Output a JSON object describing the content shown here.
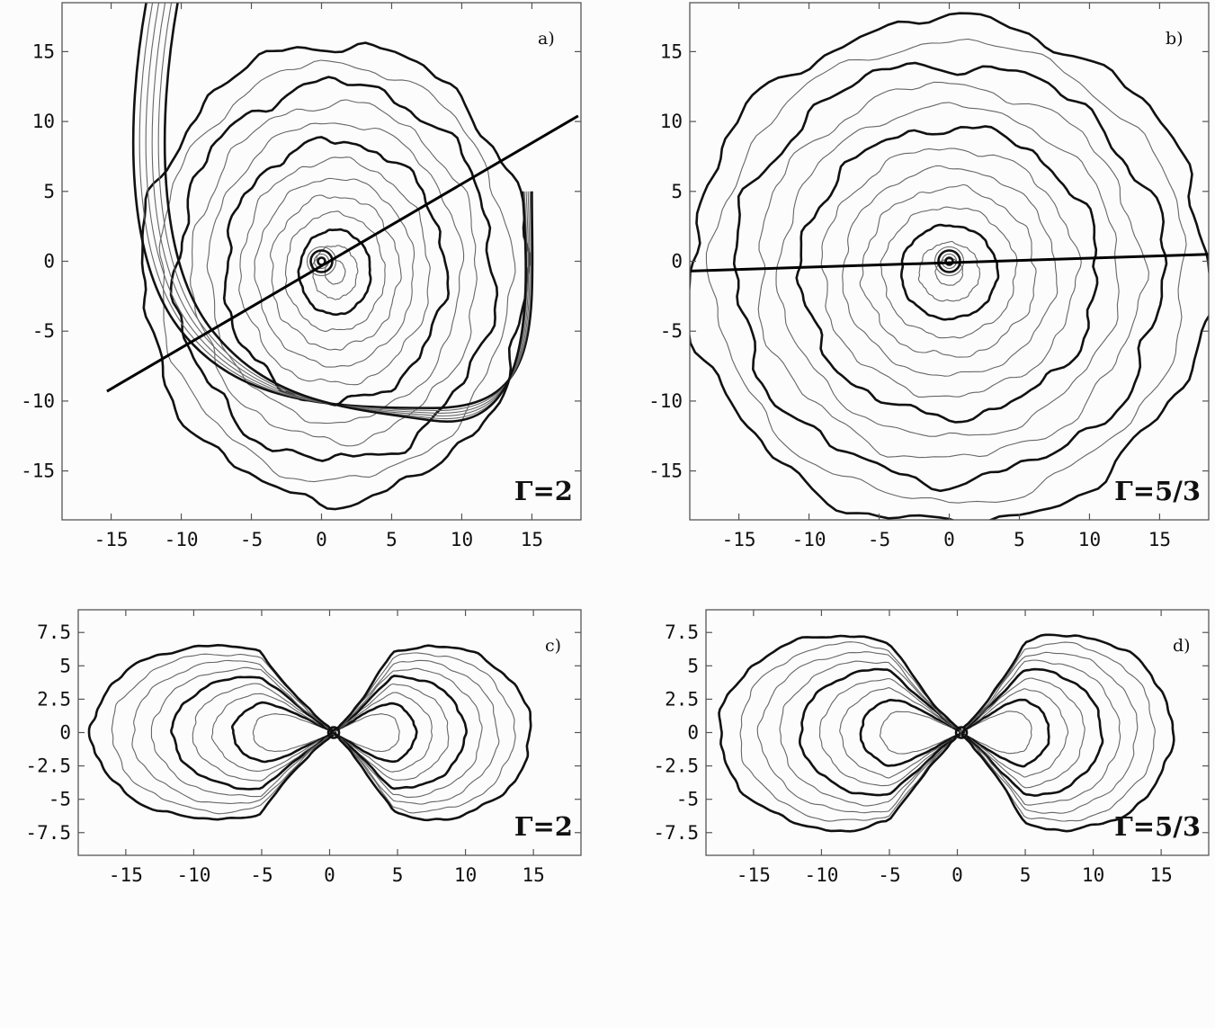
{
  "chart_data": [
    {
      "id": "a",
      "type": "contour",
      "panel_label": "a)",
      "annotation": "Γ=2",
      "xlim": [
        -18.5,
        18.5
      ],
      "ylim": [
        -18.5,
        18.5
      ],
      "xticks": [
        -15,
        -10,
        -5,
        0,
        5,
        10,
        15
      ],
      "yticks": [
        -15,
        -10,
        -5,
        0,
        5,
        10,
        15
      ],
      "xtick_labels": [
        "-15",
        "-10",
        "-5",
        "0",
        "5",
        "10",
        "15"
      ],
      "ytick_labels": [
        "-15",
        "-10",
        "-5",
        "0",
        "5",
        "10",
        "15"
      ],
      "center": [
        0,
        0
      ],
      "outer_extent": {
        "left": -12,
        "right": 18.5,
        "top": 16.5,
        "bottom": -16.2
      },
      "cut_line": {
        "from": [
          -15.3,
          -9.3
        ],
        "to": [
          18.3,
          10.4
        ]
      },
      "spiral_arm": true
    },
    {
      "id": "b",
      "type": "contour",
      "panel_label": "b)",
      "annotation": "Γ=5/3",
      "xlim": [
        -18.5,
        18.5
      ],
      "ylim": [
        -18.5,
        18.5
      ],
      "xticks": [
        -15,
        -10,
        -5,
        0,
        5,
        10,
        15
      ],
      "yticks": [
        -15,
        -10,
        -5,
        0,
        5,
        10,
        15
      ],
      "xtick_labels": [
        "-15",
        "-10",
        "-5",
        "0",
        "5",
        "10",
        "15"
      ],
      "ytick_labels": [
        "-15",
        "-10",
        "-5",
        "0",
        "5",
        "10",
        "15"
      ],
      "center": [
        0,
        0
      ],
      "outer_extent": {
        "left": -18.5,
        "right": 18.5,
        "top": 17.8,
        "bottom": -18.3
      },
      "cut_line": {
        "from": [
          -18.5,
          -0.7
        ],
        "to": [
          18.5,
          0.5
        ]
      },
      "spiral_arm": false
    },
    {
      "id": "c",
      "type": "contour",
      "panel_label": "c)",
      "annotation": "Γ=2",
      "xlim": [
        -18.5,
        18.5
      ],
      "ylim": [
        -9.2,
        9.2
      ],
      "xticks": [
        -15,
        -10,
        -5,
        0,
        5,
        10,
        15
      ],
      "yticks": [
        7.5,
        5,
        2.5,
        0,
        -2.5,
        -5,
        -7.5
      ],
      "xtick_labels": [
        "-15",
        "-10",
        "-5",
        "0",
        "5",
        "10",
        "15"
      ],
      "ytick_labels": [
        "7.5",
        "5",
        "2.5",
        "0",
        "-2.5",
        "-5",
        "-7.5"
      ],
      "lobe_extent": {
        "left": -17.5,
        "right": 14.8,
        "top": 6.5,
        "bottom": -6.2
      }
    },
    {
      "id": "d",
      "type": "contour",
      "panel_label": "d)",
      "annotation": "Γ=5/3",
      "xlim": [
        -18.5,
        18.5
      ],
      "ylim": [
        -9.2,
        9.2
      ],
      "xticks": [
        -15,
        -10,
        -5,
        0,
        5,
        10,
        15
      ],
      "yticks": [
        7.5,
        5,
        2.5,
        0,
        -2.5,
        -5,
        -7.5
      ],
      "xtick_labels": [
        "-15",
        "-10",
        "-5",
        "0",
        "5",
        "10",
        "15"
      ],
      "ytick_labels": [
        "7.5",
        "5",
        "2.5",
        "0",
        "-2.5",
        "-5",
        "-7.5"
      ],
      "lobe_extent": {
        "left": -17.5,
        "right": 15.8,
        "top": 7.3,
        "bottom": -7.5
      }
    }
  ]
}
